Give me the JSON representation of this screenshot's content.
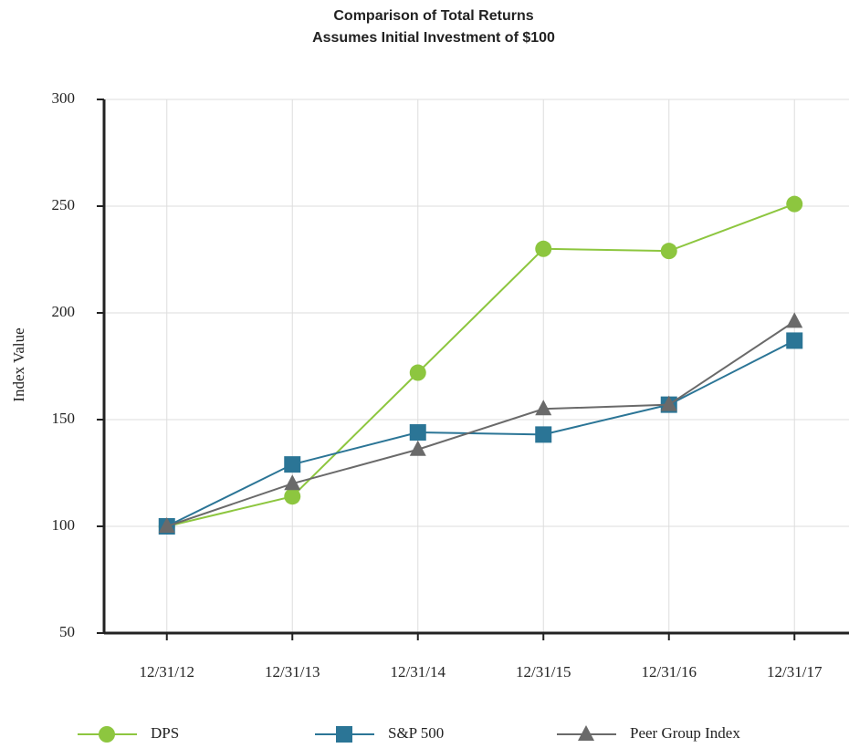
{
  "chart_data": {
    "type": "line",
    "title": "Comparison of Total Returns",
    "subtitle": "Assumes Initial Investment of $100",
    "y_label": "Index Value",
    "categories": [
      "12/31/12",
      "12/31/13",
      "12/31/14",
      "12/31/15",
      "12/31/16",
      "12/31/17"
    ],
    "series": [
      {
        "name": "DPS",
        "color": "#8dc63f",
        "marker": "circle",
        "values": [
          100,
          114,
          172,
          230,
          229,
          251
        ]
      },
      {
        "name": "S&P 500",
        "color": "#2b7596",
        "marker": "square",
        "values": [
          100,
          129,
          144,
          143,
          157,
          187
        ]
      },
      {
        "name": "Peer Group Index",
        "color": "#6a6a6a",
        "marker": "triangle",
        "values": [
          100,
          120,
          136,
          155,
          157,
          196
        ]
      }
    ],
    "ylim": [
      50,
      300
    ],
    "yticks": [
      50,
      100,
      150,
      200,
      250,
      300
    ],
    "grid": true,
    "legend": "bottom"
  }
}
